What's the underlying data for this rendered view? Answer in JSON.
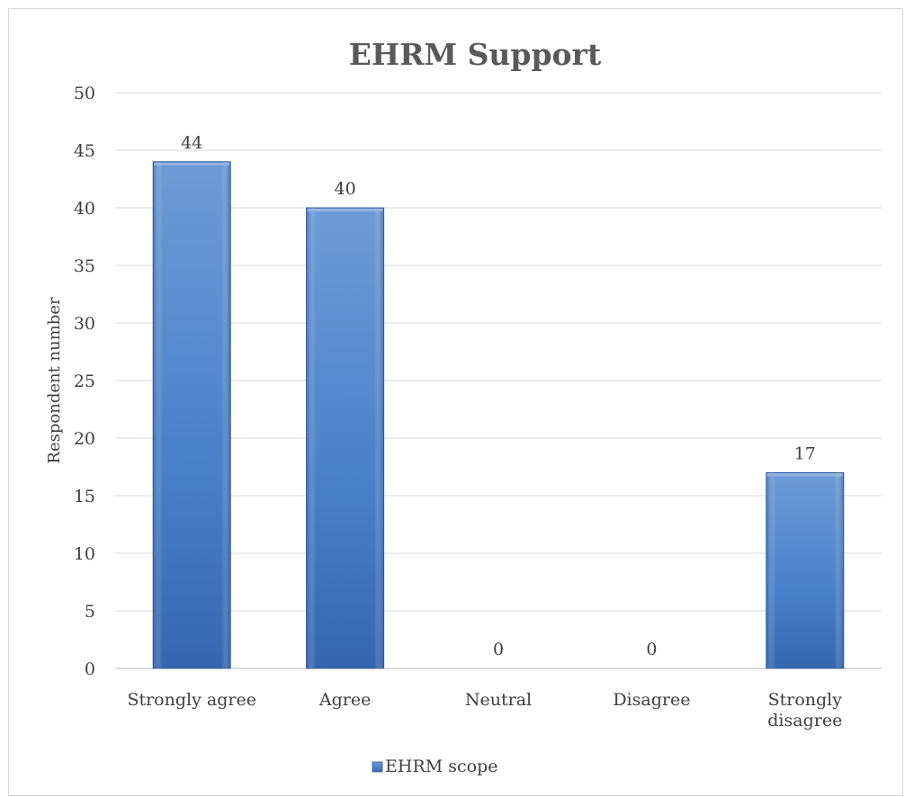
{
  "chart_data": {
    "type": "bar",
    "title": "EHRM Support",
    "xlabel": "",
    "ylabel": "Respondent number",
    "categories": [
      "Strongly agree",
      "Agree",
      "Neutral",
      "Disagree",
      "Strongly disagree"
    ],
    "category_lines": [
      [
        "Strongly agree"
      ],
      [
        "Agree"
      ],
      [
        "Neutral"
      ],
      [
        "Disagree"
      ],
      [
        "Strongly",
        "disagree"
      ]
    ],
    "series": [
      {
        "name": "EHRM scope",
        "values": [
          44,
          40,
          0,
          0,
          17
        ],
        "color": "#4a7fc7"
      }
    ],
    "ylim": [
      0,
      50
    ],
    "yticks": [
      0,
      5,
      10,
      15,
      20,
      25,
      30,
      35,
      40,
      45,
      50
    ],
    "grid": true,
    "legend_position": "bottom",
    "data_labels": true
  }
}
